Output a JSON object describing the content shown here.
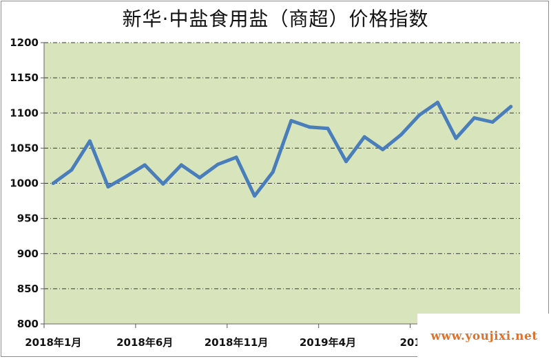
{
  "chart_data": {
    "type": "line",
    "title": "新华·中盐食用盐（商超）价格指数",
    "xlabel": "",
    "ylabel": "",
    "ylim": [
      800,
      1200
    ],
    "y_ticks": [
      800,
      850,
      900,
      950,
      1000,
      1050,
      1100,
      1150,
      1200
    ],
    "x_tick_labels": [
      {
        "index": 0,
        "label": "2018年1月"
      },
      {
        "index": 5,
        "label": "2018年6月"
      },
      {
        "index": 10,
        "label": "2018年11月"
      },
      {
        "index": 15,
        "label": "2019年4月"
      },
      {
        "index": 20,
        "label": "2019年"
      }
    ],
    "grid": true,
    "legend": "none",
    "series": [
      {
        "values": [
          1000,
          1019,
          1060,
          995,
          1010,
          1026,
          999,
          1026,
          1008,
          1027,
          1037,
          982,
          1016,
          1089,
          1080,
          1078,
          1031,
          1066,
          1048,
          1069,
          1097,
          1115,
          1064,
          1093,
          1087,
          1109
        ],
        "color": "#4a7ebb"
      }
    ],
    "plot_background": "#d8e4bc",
    "grid_color": "#333333"
  },
  "watermark": {
    "text": "www.youjixi.net",
    "color": "#e0702a"
  }
}
